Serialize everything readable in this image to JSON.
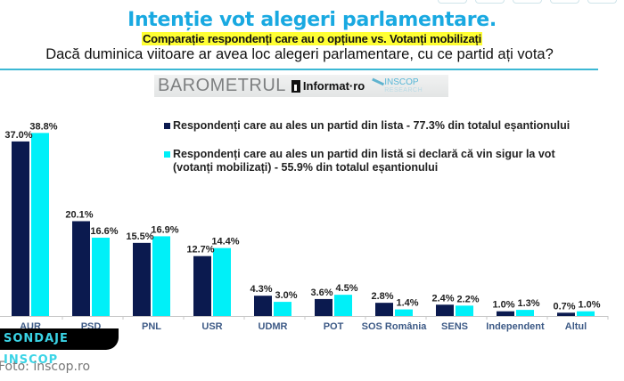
{
  "header": {
    "title": "Intenție vot alegeri parlamentare.",
    "subtitle": "Comparație respondenți care au o opțiune vs. Votanți mobilizați",
    "question": "Dacă duminica viitoare ar avea loc alegeri parlamentare, cu ce partid ați vota?"
  },
  "logos": {
    "barometru": "BAROMETRUL",
    "informat": "Informat·ro",
    "inscop_1": "INSCOP",
    "inscop_2": "RESEARCH"
  },
  "colors": {
    "series_1": "#0b1a4f",
    "series_2": "#00f0f8",
    "title": "#19a9e1",
    "highlight": "#ffff33"
  },
  "chart_data": {
    "type": "bar",
    "title": "Intenție vot alegeri parlamentare.",
    "xlabel": "",
    "ylabel": "",
    "ylim": [
      0,
      40
    ],
    "grid": false,
    "legend_position": "top-right",
    "categories": [
      "AUR",
      "PSD",
      "PNL",
      "USR",
      "UDMR",
      "POT",
      "SOS România",
      "SENS",
      "Independent",
      "Altul"
    ],
    "series": [
      {
        "name": "Respondenți care au ales un partid din lista - 77.3%  din totalul eșantionului",
        "values": [
          37.0,
          20.1,
          15.5,
          12.7,
          4.3,
          3.6,
          2.8,
          2.4,
          1.0,
          0.7
        ],
        "labels": [
          "37.0%",
          "20.1%",
          "15.5%",
          "12.7%",
          "4.3%",
          "3.6%",
          "2.8%",
          "2.4%",
          "1.0%",
          "0.7%"
        ]
      },
      {
        "name": "Respondenți care au ales un partid din listă si declară că vin sigur la vot (votanți mobilizați) - 55.9%  din totalul eșantionului",
        "values": [
          38.8,
          16.6,
          16.9,
          14.4,
          3.0,
          4.5,
          1.4,
          2.2,
          1.3,
          1.0
        ],
        "labels": [
          "38.8%",
          "16.6%",
          "16.9%",
          "14.4%",
          "3.0%",
          "4.5%",
          "1.4%",
          "2.2%",
          "1.3%",
          "1.0%"
        ]
      }
    ]
  },
  "legend": {
    "item_1": "Respondenți care au ales un partid din lista - 77.3%  din totalul eșantionului",
    "item_2a": "Respondenți care au ales un partid din listă si declară că vin sigur la vot",
    "item_2b": "(votanți mobilizați) - 55.9%  din totalul eșantionului"
  },
  "footer": {
    "badge": "SONDAJE INSCOP",
    "credit": "Foto: inscop.ro"
  }
}
